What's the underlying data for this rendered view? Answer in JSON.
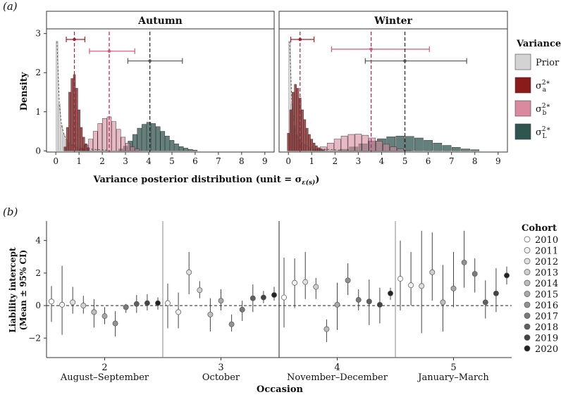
{
  "panel_labels": {
    "a": "(a)",
    "b": "(b)"
  },
  "chart_data": [
    {
      "type": "histogram",
      "facets": [
        "Autumn",
        "Winter"
      ],
      "ylabel": "Density",
      "xlabel": "Variance posterior distribution (unit = σ",
      "xlabel_sub": "ε(s)",
      "xlabel_end": ")",
      "xlim": [
        0,
        9
      ],
      "ylim": [
        0,
        3
      ],
      "xticks": [
        "0",
        "1",
        "2",
        "3",
        "4",
        "5",
        "6",
        "7",
        "8",
        "9"
      ],
      "yticks": [
        "0",
        "1",
        "2",
        "3"
      ],
      "legend_title": "Variance",
      "legend": [
        {
          "key": "prior",
          "label": "Prior",
          "color": "#d3d3d3"
        },
        {
          "key": "a",
          "sym": "σ",
          "sup": "2",
          "sub": "a",
          "star": "*",
          "color": "#8b1a1a"
        },
        {
          "key": "b",
          "sym": "σ",
          "sup": "2",
          "sub": "b",
          "star": "*",
          "color": "#d98a9f"
        },
        {
          "key": "L",
          "sym": "σ",
          "sup": "2",
          "sub": "L",
          "star": "*",
          "color": "#2f5550"
        }
      ],
      "panels": {
        "Autumn": {
          "medians": {
            "a": 0.8,
            "b": 2.3,
            "L": 4.05
          },
          "intervals": {
            "a": [
              0.45,
              1.25
            ],
            "b": [
              1.45,
              3.4
            ],
            "L": [
              3.1,
              5.45
            ]
          },
          "interval_y": {
            "a": 2.85,
            "b": 2.55,
            "L": 2.3
          },
          "series": {
            "a": [
              [
                0.4,
                0.1
              ],
              [
                0.5,
                0.6
              ],
              [
                0.6,
                1.5
              ],
              [
                0.7,
                1.85
              ],
              [
                0.8,
                1.95
              ],
              [
                0.9,
                1.6
              ],
              [
                1.0,
                1.05
              ],
              [
                1.1,
                0.6
              ],
              [
                1.2,
                0.35
              ],
              [
                1.3,
                0.18
              ],
              [
                1.4,
                0.08
              ]
            ],
            "b": [
              [
                1.1,
                0.05
              ],
              [
                1.3,
                0.15
              ],
              [
                1.5,
                0.3
              ],
              [
                1.7,
                0.5
              ],
              [
                1.9,
                0.7
              ],
              [
                2.1,
                0.83
              ],
              [
                2.3,
                0.87
              ],
              [
                2.5,
                0.75
              ],
              [
                2.7,
                0.55
              ],
              [
                2.9,
                0.35
              ],
              [
                3.1,
                0.2
              ],
              [
                3.3,
                0.1
              ],
              [
                3.5,
                0.05
              ]
            ],
            "L": [
              [
                2.8,
                0.05
              ],
              [
                3.0,
                0.12
              ],
              [
                3.2,
                0.25
              ],
              [
                3.4,
                0.42
              ],
              [
                3.6,
                0.58
              ],
              [
                3.8,
                0.68
              ],
              [
                4.0,
                0.73
              ],
              [
                4.2,
                0.7
              ],
              [
                4.4,
                0.62
              ],
              [
                4.6,
                0.5
              ],
              [
                4.8,
                0.38
              ],
              [
                5.0,
                0.27
              ],
              [
                5.2,
                0.18
              ],
              [
                5.4,
                0.11
              ],
              [
                5.6,
                0.07
              ],
              [
                5.8,
                0.04
              ],
              [
                6.0,
                0.02
              ]
            ],
            "prior": [
              [
                0.05,
                2.8
              ],
              [
                0.15,
                1.2
              ],
              [
                0.25,
                0.65
              ],
              [
                0.35,
                0.42
              ],
              [
                0.45,
                0.3
              ],
              [
                0.55,
                0.22
              ],
              [
                0.7,
                0.15
              ],
              [
                0.9,
                0.1
              ],
              [
                1.2,
                0.06
              ],
              [
                1.6,
                0.04
              ],
              [
                2.2,
                0.02
              ]
            ]
          }
        },
        "Winter": {
          "medians": {
            "a": 0.5,
            "b": 3.55,
            "L": 5.0
          },
          "intervals": {
            "a": [
              0.1,
              1.1
            ],
            "b": [
              1.85,
              6.05
            ],
            "L": [
              3.3,
              7.65
            ]
          },
          "interval_y": {
            "a": 2.85,
            "b": 2.6,
            "L": 2.3
          },
          "series": {
            "a": [
              [
                0.0,
                0.45
              ],
              [
                0.1,
                1.05
              ],
              [
                0.2,
                1.5
              ],
              [
                0.3,
                1.7
              ],
              [
                0.4,
                1.6
              ],
              [
                0.5,
                1.35
              ],
              [
                0.6,
                1.05
              ],
              [
                0.7,
                0.8
              ],
              [
                0.8,
                0.58
              ],
              [
                0.9,
                0.42
              ],
              [
                1.0,
                0.3
              ],
              [
                1.1,
                0.2
              ],
              [
                1.2,
                0.13
              ],
              [
                1.3,
                0.08
              ],
              [
                1.4,
                0.05
              ],
              [
                1.5,
                0.03
              ]
            ],
            "b": [
              [
                1.2,
                0.04
              ],
              [
                1.5,
                0.1
              ],
              [
                1.8,
                0.2
              ],
              [
                2.1,
                0.3
              ],
              [
                2.4,
                0.38
              ],
              [
                2.7,
                0.42
              ],
              [
                3.0,
                0.43
              ],
              [
                3.3,
                0.4
              ],
              [
                3.6,
                0.33
              ],
              [
                3.9,
                0.25
              ],
              [
                4.2,
                0.17
              ],
              [
                4.5,
                0.1
              ],
              [
                4.8,
                0.05
              ],
              [
                5.1,
                0.02
              ]
            ],
            "L": [
              [
                2.4,
                0.04
              ],
              [
                2.8,
                0.1
              ],
              [
                3.2,
                0.18
              ],
              [
                3.6,
                0.25
              ],
              [
                4.0,
                0.31
              ],
              [
                4.4,
                0.36
              ],
              [
                4.8,
                0.38
              ],
              [
                5.2,
                0.37
              ],
              [
                5.6,
                0.33
              ],
              [
                6.0,
                0.27
              ],
              [
                6.4,
                0.2
              ],
              [
                6.8,
                0.14
              ],
              [
                7.2,
                0.09
              ],
              [
                7.6,
                0.05
              ],
              [
                8.0,
                0.03
              ]
            ],
            "prior": [
              [
                0.05,
                2.8
              ],
              [
                0.15,
                1.2
              ],
              [
                0.25,
                0.65
              ],
              [
                0.35,
                0.42
              ],
              [
                0.45,
                0.3
              ],
              [
                0.55,
                0.22
              ],
              [
                0.7,
                0.15
              ],
              [
                0.9,
                0.1
              ],
              [
                1.2,
                0.06
              ],
              [
                1.6,
                0.04
              ],
              [
                2.2,
                0.02
              ]
            ]
          }
        }
      }
    },
    {
      "type": "scatter",
      "xlabel": "Occasion",
      "ylabel": "Liability intercept",
      "ylabel2": "(Mean ± 95% CI)",
      "ylim": [
        -3.2,
        5.2
      ],
      "yticks": [
        "−2",
        "0",
        "2",
        "4"
      ],
      "legend_title": "Cohort",
      "cohorts": [
        "2010",
        "2011",
        "2012",
        "2013",
        "2014",
        "2015",
        "2016",
        "2017",
        "2018",
        "2019",
        "2020"
      ],
      "cohort_colors": [
        "#ffffff",
        "#f0f0f0",
        "#e0e0e0",
        "#cfcfcf",
        "#bdbdbd",
        "#a8a8a8",
        "#929292",
        "#7a7a7a",
        "#606060",
        "#444444",
        "#222222"
      ],
      "occasions": [
        {
          "number": "2",
          "label": "August–September",
          "points": [
            {
              "m": 0.25,
              "lo": -1.0,
              "hi": 1.2
            },
            {
              "m": 0.05,
              "lo": -1.8,
              "hi": 2.45
            },
            {
              "m": 0.2,
              "lo": -0.5,
              "hi": 1.15
            },
            {
              "m": 0.0,
              "lo": -0.5,
              "hi": 0.6
            },
            {
              "m": -0.4,
              "lo": -1.35,
              "hi": 0.4
            },
            {
              "m": -0.65,
              "lo": -1.15,
              "hi": -0.1
            },
            {
              "m": -1.1,
              "lo": -1.9,
              "hi": -0.35
            },
            {
              "m": -0.1,
              "lo": -0.45,
              "hi": 0.1
            },
            {
              "m": 0.1,
              "lo": -0.45,
              "hi": 0.65
            },
            {
              "m": 0.15,
              "lo": -0.3,
              "hi": 0.7
            },
            {
              "m": 0.15,
              "lo": -0.25,
              "hi": 0.5
            }
          ]
        },
        {
          "number": "3",
          "label": "October",
          "points": [
            {
              "m": 0.15,
              "lo": -1.4,
              "hi": 1.35
            },
            {
              "m": -0.4,
              "lo": -1.4,
              "hi": 0.8
            },
            {
              "m": 2.05,
              "lo": 0.7,
              "hi": 3.3
            },
            {
              "m": 0.95,
              "lo": 0.45,
              "hi": 1.5
            },
            {
              "m": -0.55,
              "lo": -1.6,
              "hi": 0.45
            },
            {
              "m": 0.3,
              "lo": -0.3,
              "hi": 1.0
            },
            {
              "m": -1.15,
              "lo": -1.6,
              "hi": -0.55
            },
            {
              "m": -0.25,
              "lo": -0.95,
              "hi": 0.3
            },
            {
              "m": 0.45,
              "lo": -0.4,
              "hi": 1.3
            },
            {
              "m": 0.5,
              "lo": 0.15,
              "hi": 0.9
            },
            {
              "m": 0.65,
              "lo": 0.3,
              "hi": 1.15
            }
          ]
        },
        {
          "number": "4",
          "label": "November–December",
          "points": [
            {
              "m": 0.5,
              "lo": -1.35,
              "hi": 2.95
            },
            {
              "m": 1.4,
              "lo": -0.15,
              "hi": 2.9
            },
            {
              "m": 1.45,
              "lo": 0.4,
              "hi": 3.3
            },
            {
              "m": 1.15,
              "lo": 0.4,
              "hi": 1.7
            },
            {
              "m": -1.45,
              "lo": -2.25,
              "hi": -0.85
            },
            {
              "m": 0.05,
              "lo": -1.5,
              "hi": 1.4
            },
            {
              "m": 1.55,
              "lo": 0.65,
              "hi": 2.6
            },
            {
              "m": 0.35,
              "lo": -0.3,
              "hi": 1.0
            },
            {
              "m": 0.25,
              "lo": -1.2,
              "hi": 1.6
            },
            {
              "m": 0.05,
              "lo": -1.1,
              "hi": 1.1
            },
            {
              "m": 0.75,
              "lo": 0.35,
              "hi": 1.1
            }
          ]
        },
        {
          "number": "5",
          "label": "January–March",
          "points": [
            {
              "m": 1.65,
              "lo": -0.3,
              "hi": 4.0
            },
            {
              "m": 1.25,
              "lo": 0.0,
              "hi": 3.3
            },
            {
              "m": 1.2,
              "lo": -1.7,
              "hi": 4.6
            },
            {
              "m": 2.05,
              "lo": 0.3,
              "hi": 4.5
            },
            {
              "m": 0.2,
              "lo": -1.6,
              "hi": 2.5
            },
            {
              "m": 1.05,
              "lo": -0.1,
              "hi": 3.3
            },
            {
              "m": 2.65,
              "lo": 1.1,
              "hi": 4.6
            },
            {
              "m": 1.95,
              "lo": 0.8,
              "hi": 2.9
            },
            {
              "m": 0.2,
              "lo": -0.8,
              "hi": 1.55
            },
            {
              "m": 0.75,
              "lo": -0.4,
              "hi": 2.3
            },
            {
              "m": 1.85,
              "lo": 1.3,
              "hi": 2.4
            }
          ]
        }
      ]
    }
  ]
}
